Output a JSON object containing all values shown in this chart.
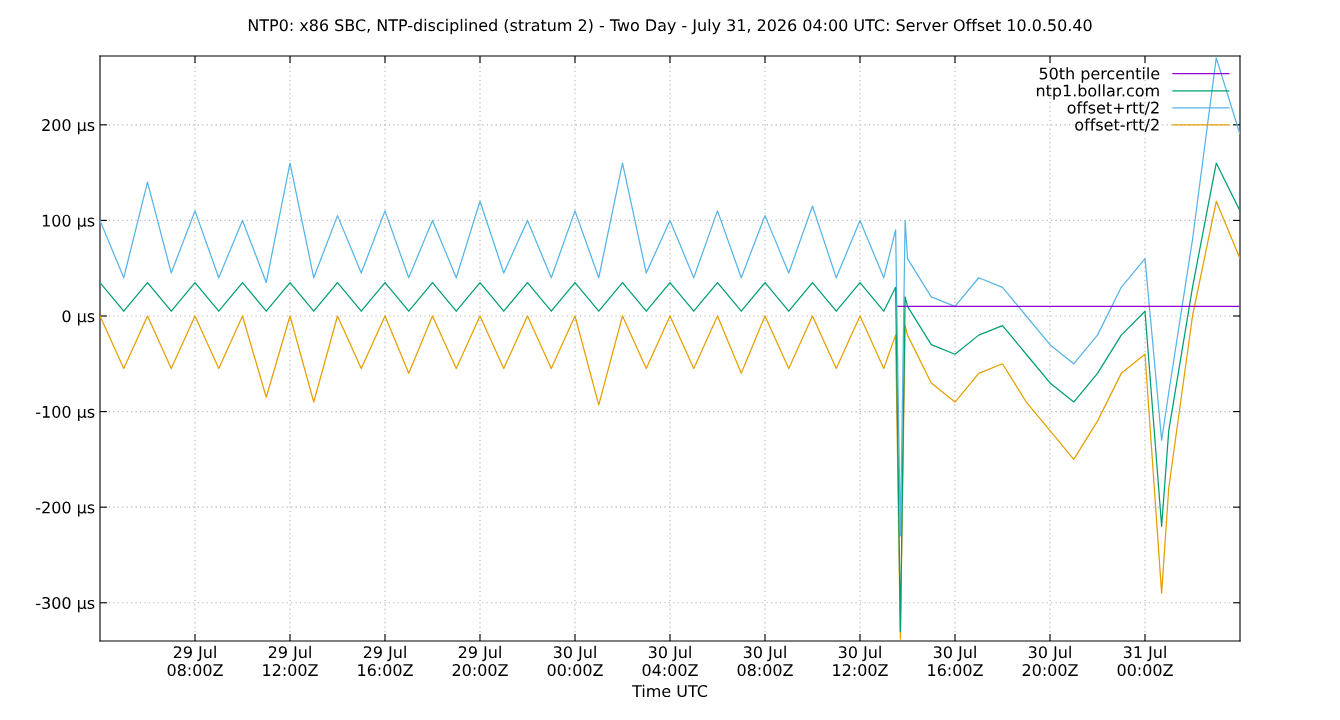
{
  "chart_data": {
    "type": "line",
    "title": "NTP0: x86 SBC, NTP-disciplined (stratum 2) - Two Day - July 31, 2026 04:00 UTC: Server Offset 10.0.50.40",
    "xlabel": "Time UTC",
    "x": [
      "2026-07-29T04:00",
      "2026-07-29T05:00",
      "2026-07-29T06:00",
      "2026-07-29T07:00",
      "2026-07-29T08:00",
      "2026-07-29T09:00",
      "2026-07-29T10:00",
      "2026-07-29T11:00",
      "2026-07-29T12:00",
      "2026-07-29T13:00",
      "2026-07-29T14:00",
      "2026-07-29T15:00",
      "2026-07-29T16:00",
      "2026-07-29T17:00",
      "2026-07-29T18:00",
      "2026-07-29T19:00",
      "2026-07-29T20:00",
      "2026-07-29T21:00",
      "2026-07-29T22:00",
      "2026-07-29T23:00",
      "2026-07-30T00:00",
      "2026-07-30T01:00",
      "2026-07-30T02:00",
      "2026-07-30T03:00",
      "2026-07-30T04:00",
      "2026-07-30T05:00",
      "2026-07-30T06:00",
      "2026-07-30T07:00",
      "2026-07-30T08:00",
      "2026-07-30T09:00",
      "2026-07-30T10:00",
      "2026-07-30T11:00",
      "2026-07-30T12:00",
      "2026-07-30T13:00",
      "2026-07-30T13:30",
      "2026-07-30T13:42",
      "2026-07-30T13:54",
      "2026-07-30T14:00",
      "2026-07-30T15:00",
      "2026-07-30T16:00",
      "2026-07-30T17:00",
      "2026-07-30T18:00",
      "2026-07-30T19:00",
      "2026-07-30T20:00",
      "2026-07-30T21:00",
      "2026-07-30T22:00",
      "2026-07-30T23:00",
      "2026-07-31T00:00",
      "2026-07-31T00:42",
      "2026-07-31T01:00",
      "2026-07-31T02:00",
      "2026-07-31T03:00",
      "2026-07-31T04:00"
    ],
    "series": [
      {
        "name": "50th percentile",
        "color": "#9400d3",
        "x": [
          "2026-07-30T13:36",
          "2026-07-31T04:00"
        ],
        "values": [
          10,
          10
        ]
      },
      {
        "name": "ntp1.bollar.com",
        "color": "#009e73",
        "values": [
          35,
          5,
          35,
          5,
          35,
          5,
          35,
          5,
          35,
          5,
          35,
          5,
          35,
          5,
          35,
          5,
          35,
          5,
          35,
          5,
          35,
          5,
          35,
          5,
          35,
          5,
          35,
          5,
          35,
          5,
          35,
          5,
          35,
          5,
          30,
          -330,
          20,
          10,
          -30,
          -40,
          -20,
          -10,
          -40,
          -70,
          -90,
          -60,
          -20,
          5,
          -220,
          -120,
          30,
          160,
          110
        ]
      },
      {
        "name": "offset+rtt/2",
        "color": "#56b4e9",
        "values": [
          100,
          40,
          140,
          45,
          110,
          40,
          100,
          35,
          160,
          40,
          105,
          45,
          110,
          40,
          100,
          40,
          120,
          45,
          100,
          40,
          110,
          40,
          160,
          45,
          100,
          40,
          110,
          40,
          105,
          45,
          115,
          40,
          100,
          40,
          90,
          -230,
          100,
          60,
          20,
          10,
          40,
          30,
          0,
          -30,
          -50,
          -20,
          30,
          60,
          -130,
          -80,
          80,
          270,
          190
        ]
      },
      {
        "name": "offset-rtt/2",
        "color": "#e69f00",
        "values": [
          0,
          -55,
          0,
          -55,
          0,
          -55,
          0,
          -85,
          0,
          -90,
          0,
          -55,
          0,
          -60,
          0,
          -55,
          0,
          -55,
          0,
          -55,
          0,
          -93,
          0,
          -55,
          0,
          -55,
          0,
          -60,
          0,
          -55,
          0,
          -55,
          0,
          -55,
          -20,
          -338,
          -10,
          -20,
          -70,
          -90,
          -60,
          -50,
          -90,
          -120,
          -150,
          -110,
          -60,
          -40,
          -290,
          -180,
          0,
          120,
          60
        ]
      }
    ],
    "xlim": [
      "2026-07-29T04:00",
      "2026-07-31T04:00"
    ],
    "xticks": [
      {
        "value": "2026-07-29T08:00",
        "label": "29 Jul\n08:00Z"
      },
      {
        "value": "2026-07-29T12:00",
        "label": "29 Jul\n12:00Z"
      },
      {
        "value": "2026-07-29T16:00",
        "label": "29 Jul\n16:00Z"
      },
      {
        "value": "2026-07-29T20:00",
        "label": "29 Jul\n20:00Z"
      },
      {
        "value": "2026-07-30T00:00",
        "label": "30 Jul\n00:00Z"
      },
      {
        "value": "2026-07-30T04:00",
        "label": "30 Jul\n04:00Z"
      },
      {
        "value": "2026-07-30T08:00",
        "label": "30 Jul\n08:00Z"
      },
      {
        "value": "2026-07-30T12:00",
        "label": "30 Jul\n12:00Z"
      },
      {
        "value": "2026-07-30T16:00",
        "label": "30 Jul\n16:00Z"
      },
      {
        "value": "2026-07-30T20:00",
        "label": "30 Jul\n20:00Z"
      },
      {
        "value": "2026-07-31T00:00",
        "label": "31 Jul\n00:00Z"
      }
    ],
    "ylim": [
      -340,
      272
    ],
    "yticks": [
      {
        "value": -300,
        "label": "-300 µs"
      },
      {
        "value": -200,
        "label": "-200 µs"
      },
      {
        "value": -100,
        "label": "-100 µs"
      },
      {
        "value": 0,
        "label": "0 µs"
      },
      {
        "value": 100,
        "label": "100 µs"
      },
      {
        "value": 200,
        "label": "200 µs"
      }
    ],
    "grid": true,
    "legend": "top right",
    "marker": "none",
    "line_style": "solid"
  }
}
